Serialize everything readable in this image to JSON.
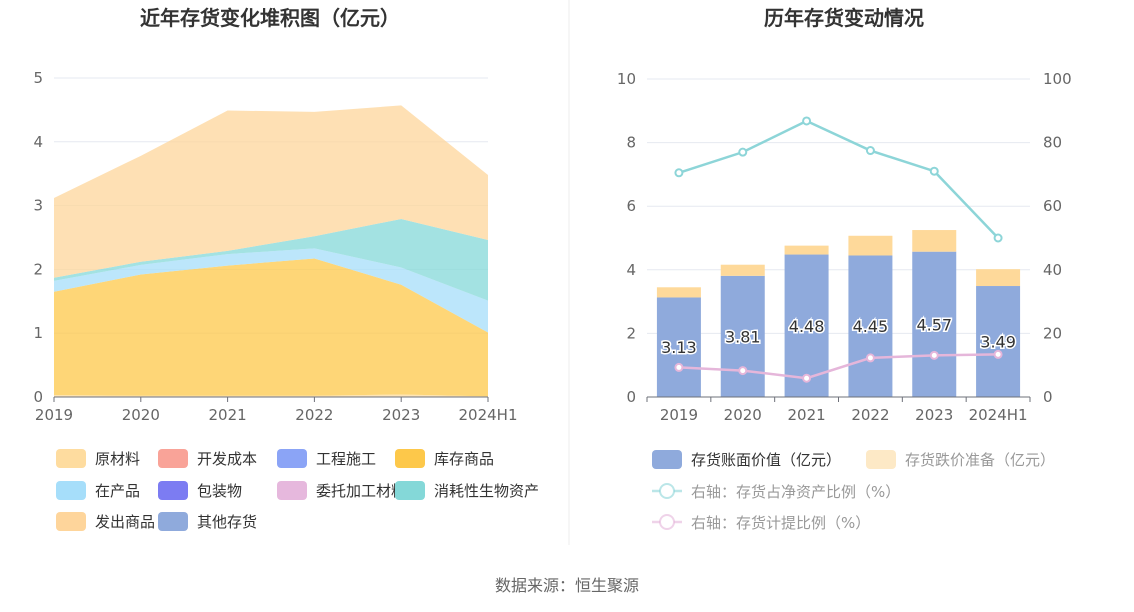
{
  "source": "数据来源：恒生聚源",
  "colors": {
    "raw_material": "#fedc9f",
    "dev_cost": "#f9a398",
    "engineering": "#8ba4f6",
    "finished_goods": "#fdc84a",
    "wip": "#a6defa",
    "packaging": "#7c7cf2",
    "consigned": "#e6b8dd",
    "bio_assets": "#84d8d8",
    "shipped_goods": "#fed59b",
    "other": "#8faadc",
    "book_value": "#8faadc",
    "impairment": "#fed99a",
    "ratio_net_assets": "#8dd5d8",
    "provision_ratio": "#e5b6da"
  },
  "chart_data": [
    {
      "type": "area",
      "stacked": true,
      "title": "近年存货变化堆积图（亿元）",
      "x": [
        "2019",
        "2020",
        "2021",
        "2022",
        "2023",
        "2024H1"
      ],
      "ylim": [
        0,
        5
      ],
      "yticks": [
        "0",
        "1",
        "2",
        "3",
        "4",
        "5"
      ],
      "grid": true,
      "legend_position": "bottom",
      "series": [
        {
          "name": "原材料",
          "key": "raw_material",
          "values": [
            0.03,
            0.02,
            0.02,
            0.02,
            0.04,
            0.01
          ]
        },
        {
          "name": "开发成本",
          "key": "dev_cost",
          "values": [
            0,
            0,
            0,
            0,
            0,
            0
          ]
        },
        {
          "name": "工程施工",
          "key": "engineering",
          "values": [
            0,
            0,
            0,
            0,
            0,
            0
          ]
        },
        {
          "name": "库存商品",
          "key": "finished_goods",
          "values": [
            1.62,
            1.9,
            2.04,
            2.15,
            1.72,
            1.0
          ]
        },
        {
          "name": "在产品",
          "key": "wip",
          "values": [
            0.17,
            0.15,
            0.18,
            0.16,
            0.27,
            0.5
          ]
        },
        {
          "name": "包装物",
          "key": "packaging",
          "values": [
            0,
            0,
            0,
            0,
            0,
            0
          ]
        },
        {
          "name": "委托加工材料",
          "key": "consigned",
          "values": [
            0,
            0,
            0,
            0,
            0,
            0
          ]
        },
        {
          "name": "消耗性生物资产",
          "key": "bio_assets",
          "values": [
            0.05,
            0.05,
            0.05,
            0.19,
            0.76,
            0.95
          ]
        },
        {
          "name": "发出商品",
          "key": "shipped_goods",
          "values": [
            1.25,
            1.66,
            2.2,
            1.95,
            1.78,
            1.02
          ]
        },
        {
          "name": "其他存货",
          "key": "other",
          "values": [
            0,
            0,
            0,
            0,
            0,
            0
          ]
        }
      ]
    },
    {
      "type": "bar+line",
      "title": "历年存货变动情况",
      "x": [
        "2019",
        "2020",
        "2021",
        "2022",
        "2023",
        "2024H1"
      ],
      "ylim_left": [
        0,
        10
      ],
      "yticks_left": [
        "0",
        "2",
        "4",
        "6",
        "8",
        "10"
      ],
      "ylim_right": [
        0,
        100
      ],
      "yticks_right": [
        "0",
        "20",
        "40",
        "60",
        "80",
        "100"
      ],
      "grid": true,
      "legend_position": "bottom",
      "bars": [
        {
          "name": "存货账面价值（亿元）",
          "key": "book_value",
          "values": [
            3.13,
            3.81,
            4.48,
            4.45,
            4.57,
            3.49
          ],
          "labels": [
            "3.13",
            "3.81",
            "4.48",
            "4.45",
            "4.57",
            "3.49"
          ]
        },
        {
          "name": "存货跌价准备（亿元）",
          "key": "impairment",
          "values": [
            0.32,
            0.35,
            0.28,
            0.62,
            0.68,
            0.53
          ]
        }
      ],
      "lines": [
        {
          "name": "右轴：存货占净资产比例（%）",
          "key": "ratio_net_assets",
          "values": [
            70.5,
            77,
            86.8,
            77.5,
            71,
            50
          ]
        },
        {
          "name": "右轴：存货计提比例（%）",
          "key": "provision_ratio",
          "values": [
            9.3,
            8.3,
            5.9,
            12.3,
            13.1,
            13.4
          ]
        }
      ]
    }
  ]
}
